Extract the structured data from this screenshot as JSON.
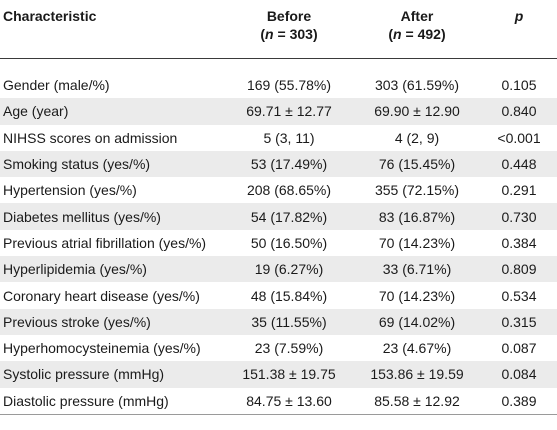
{
  "table": {
    "headers": {
      "characteristic": "Characteristic",
      "before": "Before",
      "before_n_label": "n",
      "before_n_value": " = 303",
      "after": "After",
      "after_n_label": "n",
      "after_n_value": " = 492",
      "p": "p"
    },
    "rows": [
      {
        "characteristic": "Gender (male/%)",
        "before": "169 (55.78%)",
        "after": "303 (61.59%)",
        "p": "0.105"
      },
      {
        "characteristic": "Age (year)",
        "before": "69.71 ± 12.77",
        "after": "69.90 ± 12.90",
        "p": "0.840"
      },
      {
        "characteristic": "NIHSS scores on admission",
        "before": "5 (3, 11)",
        "after": "4 (2, 9)",
        "p": "<0.001"
      },
      {
        "characteristic": "Smoking status (yes/%)",
        "before": "53 (17.49%)",
        "after": "76 (15.45%)",
        "p": "0.448"
      },
      {
        "characteristic": "Hypertension (yes/%)",
        "before": "208 (68.65%)",
        "after": "355 (72.15%)",
        "p": "0.291"
      },
      {
        "characteristic": "Diabetes mellitus (yes/%)",
        "before": "54 (17.82%)",
        "after": "83 (16.87%)",
        "p": "0.730"
      },
      {
        "characteristic": "Previous atrial fibrillation (yes/%)",
        "before": "50 (16.50%)",
        "after": "70 (14.23%)",
        "p": "0.384"
      },
      {
        "characteristic": "Hyperlipidemia (yes/%)",
        "before": "19 (6.27%)",
        "after": "33 (6.71%)",
        "p": "0.809"
      },
      {
        "characteristic": "Coronary heart disease (yes/%)",
        "before": "48 (15.84%)",
        "after": "70 (14.23%)",
        "p": "0.534"
      },
      {
        "characteristic": "Previous stroke (yes/%)",
        "before": "35 (11.55%)",
        "after": "69 (14.02%)",
        "p": "0.315"
      },
      {
        "characteristic": "Hyperhomocysteinemia (yes/%)",
        "before": "23 (7.59%)",
        "after": "23 (4.67%)",
        "p": "0.087"
      },
      {
        "characteristic": "Systolic pressure (mmHg)",
        "before": "151.38 ± 19.75",
        "after": "153.86 ± 19.59",
        "p": "0.084"
      },
      {
        "characteristic": "Diastolic pressure (mmHg)",
        "before": "84.75 ± 13.60",
        "after": "85.58 ± 12.92",
        "p": "0.389"
      }
    ]
  }
}
